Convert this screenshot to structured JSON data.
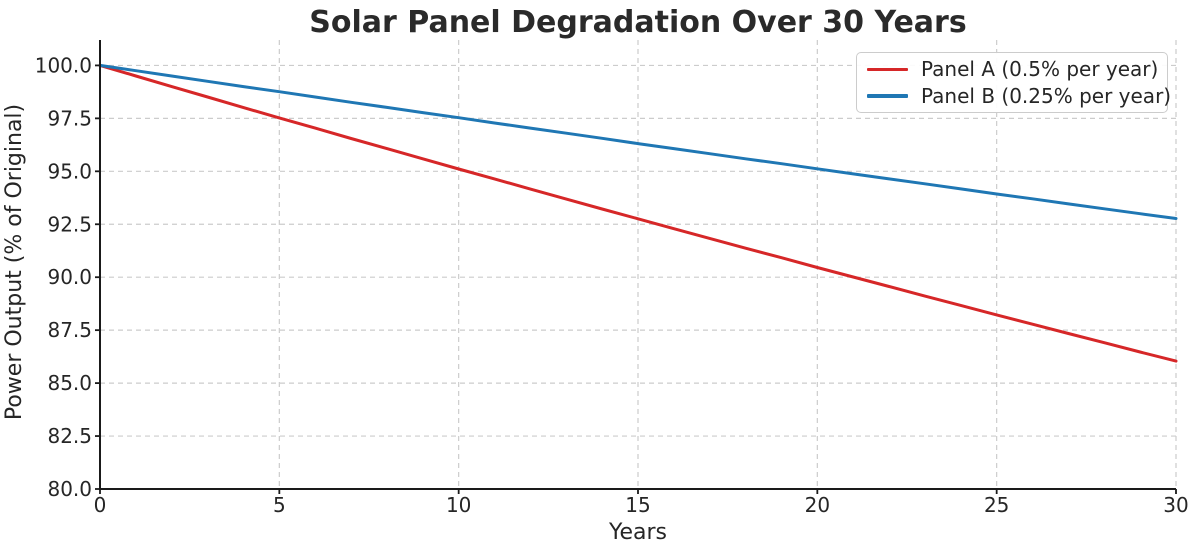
{
  "chart_data": {
    "type": "line",
    "title": "Solar Panel Degradation Over 30 Years",
    "xlabel": "Years",
    "ylabel": "Power Output (% of Original)",
    "xlim": [
      0,
      30
    ],
    "ylim": [
      80,
      101.2
    ],
    "xticks": {
      "values": [
        0,
        5,
        10,
        15,
        20,
        25,
        30
      ],
      "labels": [
        "0",
        "5",
        "10",
        "15",
        "20",
        "25",
        "30"
      ]
    },
    "yticks": {
      "values": [
        80,
        82.5,
        85,
        87.5,
        90,
        92.5,
        95,
        97.5,
        100
      ],
      "labels": [
        "80.0",
        "82.5",
        "85.0",
        "87.5",
        "90.0",
        "92.5",
        "95.0",
        "97.5",
        "100.0"
      ]
    },
    "grid": {
      "visible": true,
      "style": "dashed",
      "color": "#cccccc"
    },
    "legend": {
      "position": "upper right"
    },
    "x": [
      0,
      1,
      2,
      3,
      4,
      5,
      6,
      7,
      8,
      9,
      10,
      11,
      12,
      13,
      14,
      15,
      16,
      17,
      18,
      19,
      20,
      21,
      22,
      23,
      24,
      25,
      26,
      27,
      28,
      29,
      30
    ],
    "series": [
      {
        "name": "Panel A (0.5% per year)",
        "color": "#d62728",
        "values": [
          100.0,
          99.5,
          99.0,
          98.51,
          98.01,
          97.52,
          97.04,
          96.55,
          96.07,
          95.59,
          95.11,
          94.64,
          94.16,
          93.69,
          93.22,
          92.76,
          92.29,
          91.83,
          91.37,
          90.92,
          90.46,
          90.01,
          89.56,
          89.11,
          88.67,
          88.22,
          87.78,
          87.34,
          86.91,
          86.47,
          86.04
        ]
      },
      {
        "name": "Panel B (0.25% per year)",
        "color": "#1f77b4",
        "values": [
          100.0,
          99.75,
          99.5,
          99.25,
          99.0,
          98.76,
          98.51,
          98.26,
          98.02,
          97.77,
          97.53,
          97.28,
          97.04,
          96.8,
          96.56,
          96.31,
          96.07,
          95.83,
          95.59,
          95.36,
          95.12,
          94.88,
          94.64,
          94.41,
          94.17,
          93.93,
          93.7,
          93.46,
          93.23,
          93.0,
          92.77
        ]
      }
    ],
    "colors": {
      "axis": "#1a1a1a",
      "text": "#262626",
      "grid": "#cccccc",
      "background": "#ffffff"
    }
  }
}
